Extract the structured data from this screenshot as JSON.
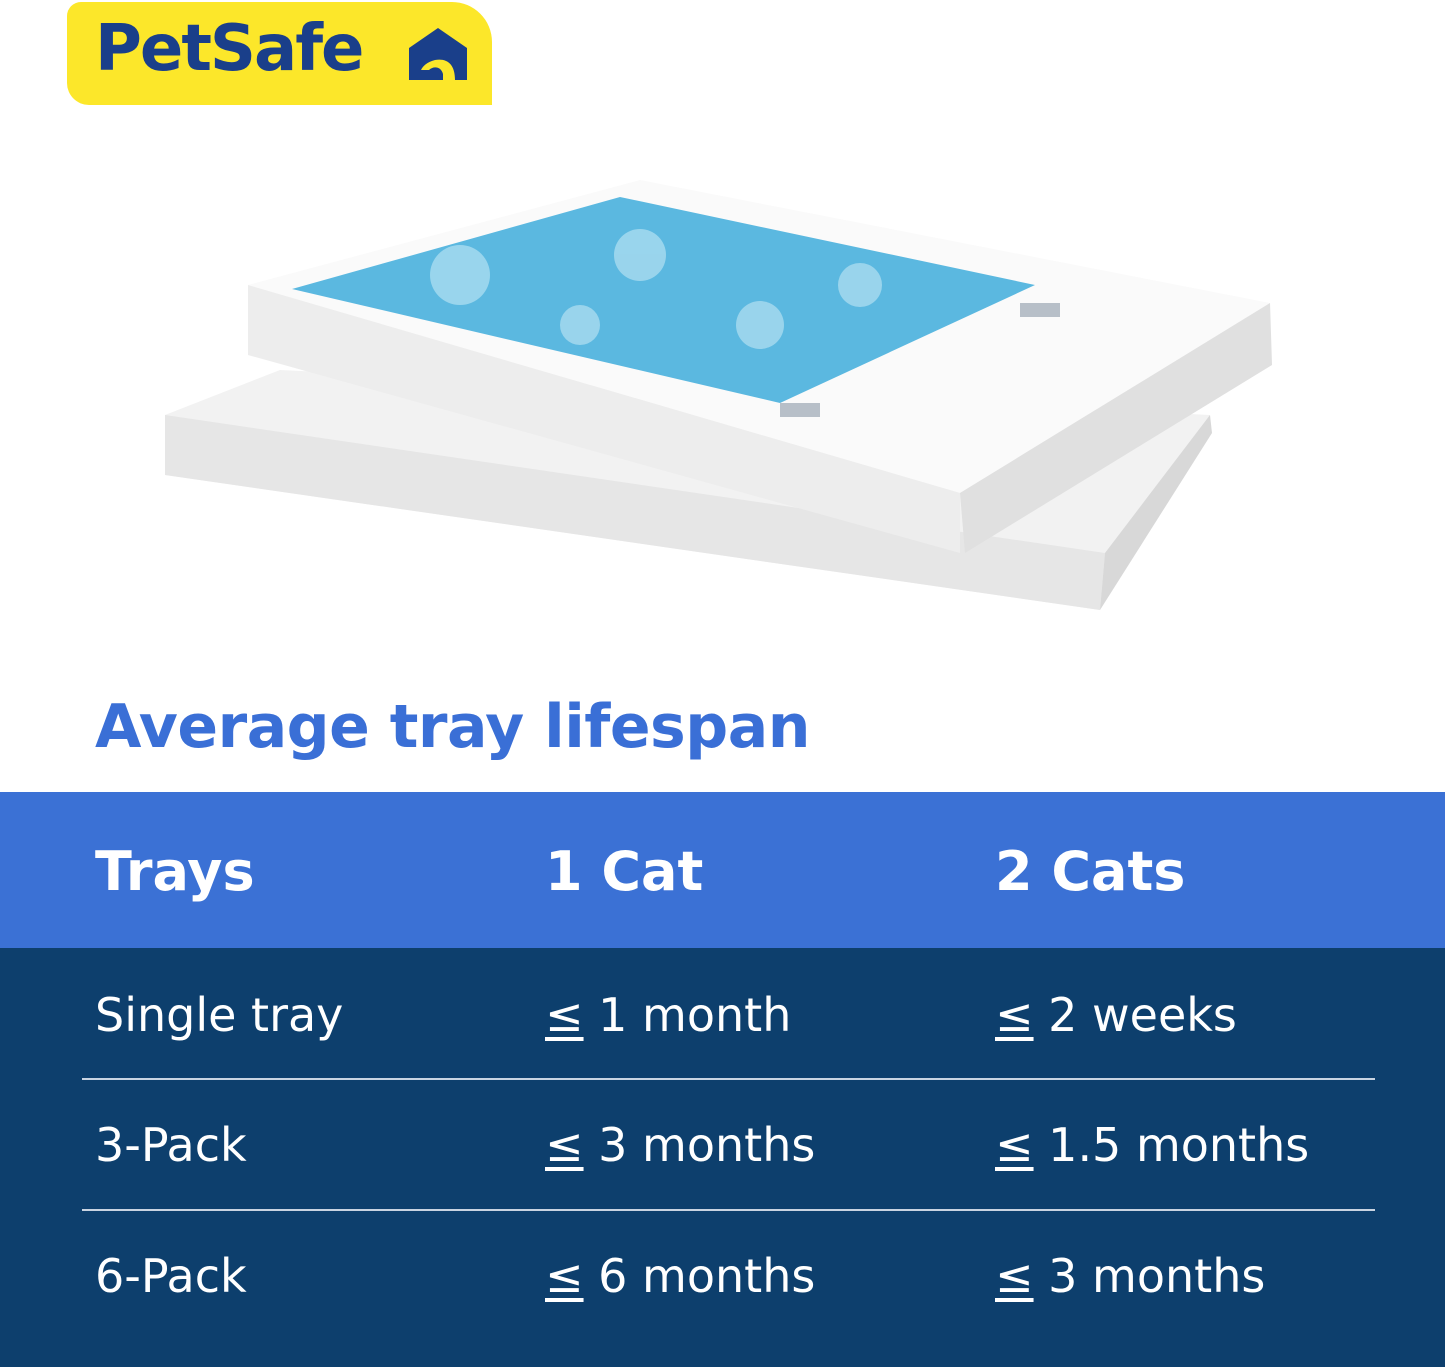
{
  "brand": {
    "logo_text": "PetSafe",
    "registered": "®",
    "colors": {
      "yellow": "#fce72a",
      "navy": "#1a3f8a"
    }
  },
  "product_image": {
    "icon": "litter-tray-icon"
  },
  "title": "Average tray lifespan",
  "table": {
    "headers": [
      "Trays",
      "1 Cat",
      "2 Cats"
    ],
    "rows": [
      {
        "tray": "Single tray",
        "one_cat": "1 month",
        "two_cats": "2 weeks"
      },
      {
        "tray": "3-Pack",
        "one_cat": "3 months",
        "two_cats": "1.5 months"
      },
      {
        "tray": "6-Pack",
        "one_cat": "6 months",
        "two_cats": "3 months"
      }
    ],
    "symbol": "≤",
    "colors": {
      "header": "#3b71d5",
      "body": "#0d3f6d",
      "title": "#3a6fd6"
    }
  }
}
